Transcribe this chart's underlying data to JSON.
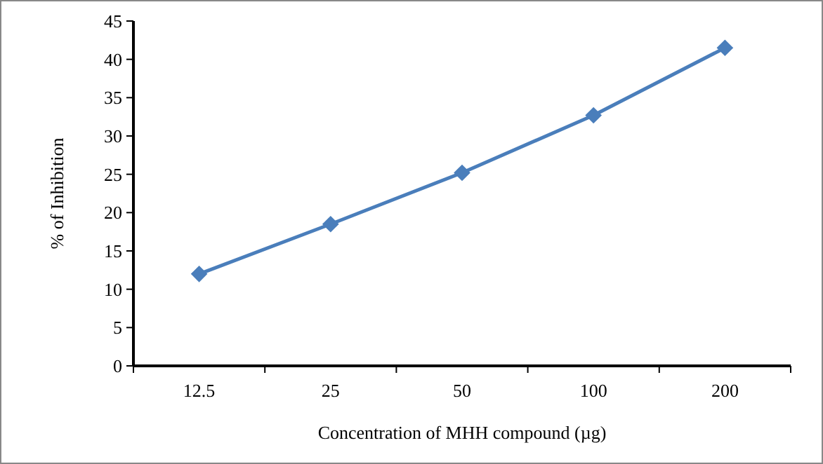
{
  "chart_data": {
    "type": "line",
    "xlabel": "Concentration of MHH compound (µg)",
    "ylabel": "% of Inhibition",
    "categories": [
      "12.5",
      "25",
      "50",
      "100",
      "200"
    ],
    "series": [
      {
        "color": "#4a7ebb",
        "values": [
          12,
          18.5,
          25.2,
          32.7,
          41.5
        ]
      }
    ],
    "ylim": [
      0,
      45
    ],
    "yticks": [
      0,
      5,
      10,
      15,
      20,
      25,
      30,
      35,
      40,
      45
    ],
    "marker": "diamond",
    "line_style": "solid",
    "grid": false
  }
}
